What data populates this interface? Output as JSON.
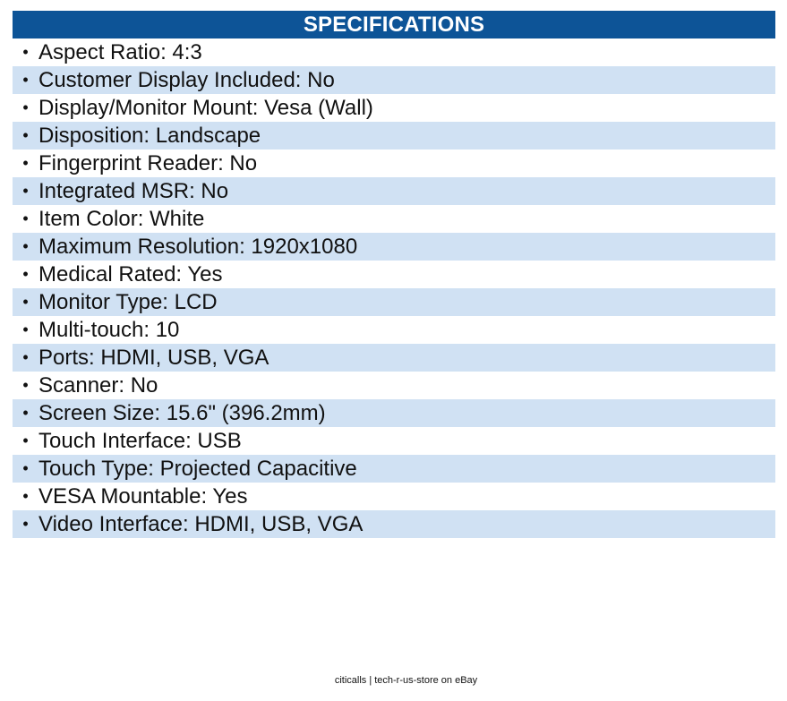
{
  "specifications": {
    "title": "SPECIFICATIONS",
    "bullet": "•",
    "items": [
      "Aspect Ratio: 4:3",
      "Customer Display Included: No",
      "Display/Monitor Mount: Vesa (Wall)",
      "Disposition: Landscape",
      "Fingerprint Reader: No",
      "Integrated MSR: No",
      "Item Color: White",
      "Maximum Resolution: 1920x1080",
      "Medical Rated: Yes",
      "Monitor Type: LCD",
      "Multi-touch: 10",
      "Ports: HDMI, USB, VGA",
      "Scanner: No",
      "Screen Size: 15.6\" (396.2mm)",
      "Touch Interface: USB",
      "Touch Type: Projected Capacitive",
      "VESA Mountable: Yes",
      "Video Interface: HDMI, USB, VGA"
    ]
  },
  "footer": {
    "text": "citicalls | tech-r-us-store on eBay"
  },
  "colors": {
    "header_bg": "#0d5497",
    "header_text": "#ffffff",
    "alt_row_bg": "#d0e1f3"
  }
}
